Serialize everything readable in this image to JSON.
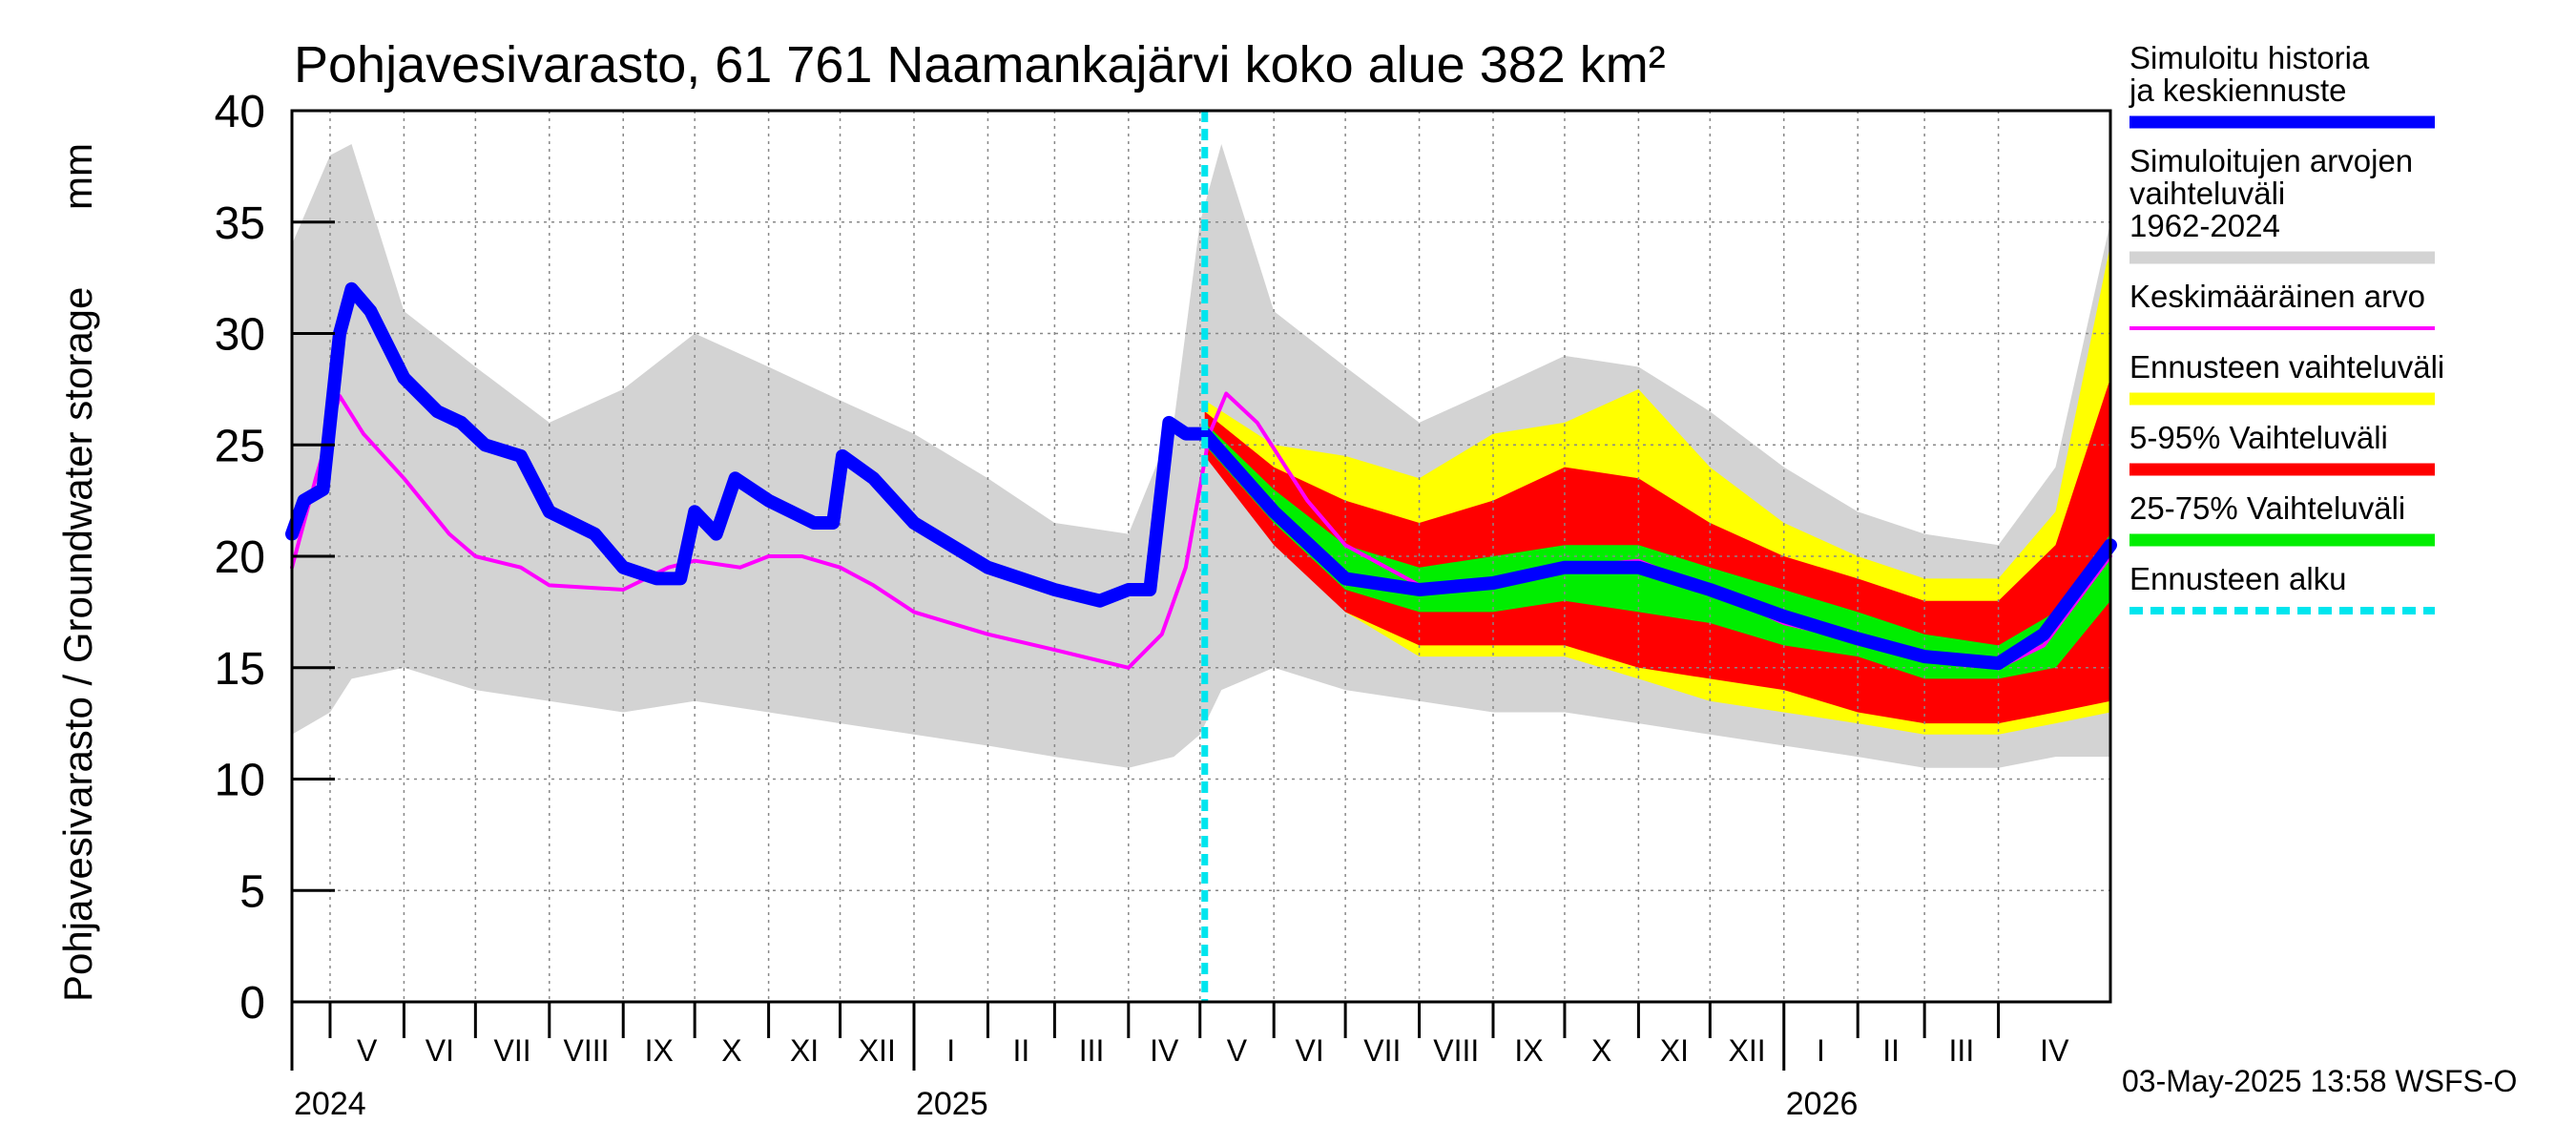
{
  "chart_data": {
    "type": "area",
    "title": "Pohjavesivarasto, 61 761 Naamankajärvi koko alue 382 km²",
    "ylabel": "Pohjavesivarasto / Groundwater storage",
    "yunit": "mm",
    "ylim": [
      0,
      40
    ],
    "yticks": [
      "0",
      "5",
      "10",
      "15",
      "20",
      "25",
      "30",
      "35",
      "40"
    ],
    "x_axis": {
      "start": "2024-04-15",
      "end": "2026-05-18",
      "months": [
        {
          "label": "V",
          "date": "2024-05-01"
        },
        {
          "label": "VI",
          "date": "2024-06-01"
        },
        {
          "label": "VII",
          "date": "2024-07-01"
        },
        {
          "label": "VIII",
          "date": "2024-08-01"
        },
        {
          "label": "IX",
          "date": "2024-09-01"
        },
        {
          "label": "X",
          "date": "2024-10-01"
        },
        {
          "label": "XI",
          "date": "2024-11-01"
        },
        {
          "label": "XII",
          "date": "2024-12-01"
        },
        {
          "label": "I",
          "date": "2025-01-01"
        },
        {
          "label": "II",
          "date": "2025-02-01"
        },
        {
          "label": "III",
          "date": "2025-03-01"
        },
        {
          "label": "IV",
          "date": "2025-04-01"
        },
        {
          "label": "V",
          "date": "2025-05-01"
        },
        {
          "label": "VI",
          "date": "2025-06-01"
        },
        {
          "label": "VII",
          "date": "2025-07-01"
        },
        {
          "label": "VIII",
          "date": "2025-08-01"
        },
        {
          "label": "IX",
          "date": "2025-09-01"
        },
        {
          "label": "X",
          "date": "2025-10-01"
        },
        {
          "label": "XI",
          "date": "2025-11-01"
        },
        {
          "label": "XII",
          "date": "2025-12-01"
        },
        {
          "label": "I",
          "date": "2026-01-01"
        },
        {
          "label": "II",
          "date": "2026-02-01"
        },
        {
          "label": "III",
          "date": "2026-03-01"
        },
        {
          "label": "IV",
          "date": "2026-04-01"
        }
      ],
      "years": [
        {
          "label": "2024",
          "date": "2024-04-15"
        },
        {
          "label": "2025",
          "date": "2025-01-01"
        },
        {
          "label": "2026",
          "date": "2026-01-01"
        }
      ]
    },
    "forecast_start": "2025-05-03",
    "series": [
      {
        "name": "Simuloitujen arvojen vaihteluväli 1962-2024",
        "kind": "band",
        "color": "#d3d3d3",
        "points": [
          {
            "d": "2024-04-15",
            "lo": 12,
            "hi": 34
          },
          {
            "d": "2024-05-01",
            "lo": 13,
            "hi": 38
          },
          {
            "d": "2024-05-10",
            "lo": 14.5,
            "hi": 38.5
          },
          {
            "d": "2024-06-01",
            "lo": 15,
            "hi": 31
          },
          {
            "d": "2024-07-01",
            "lo": 14,
            "hi": 28.5
          },
          {
            "d": "2024-08-01",
            "lo": 13.5,
            "hi": 26
          },
          {
            "d": "2024-09-01",
            "lo": 13,
            "hi": 27.5
          },
          {
            "d": "2024-10-01",
            "lo": 13.5,
            "hi": 30
          },
          {
            "d": "2024-11-01",
            "lo": 13,
            "hi": 28.5
          },
          {
            "d": "2024-12-01",
            "lo": 12.5,
            "hi": 27
          },
          {
            "d": "2025-01-01",
            "lo": 12,
            "hi": 25.5
          },
          {
            "d": "2025-02-01",
            "lo": 11.5,
            "hi": 23.5
          },
          {
            "d": "2025-03-01",
            "lo": 11,
            "hi": 21.5
          },
          {
            "d": "2025-04-01",
            "lo": 10.5,
            "hi": 21
          },
          {
            "d": "2025-04-20",
            "lo": 11,
            "hi": 26
          },
          {
            "d": "2025-05-01",
            "lo": 12,
            "hi": 35
          },
          {
            "d": "2025-05-10",
            "lo": 14,
            "hi": 38.5
          },
          {
            "d": "2025-06-01",
            "lo": 15,
            "hi": 31
          },
          {
            "d": "2025-07-01",
            "lo": 14,
            "hi": 28.5
          },
          {
            "d": "2025-08-01",
            "lo": 13.5,
            "hi": 26
          },
          {
            "d": "2025-09-01",
            "lo": 13,
            "hi": 27.5
          },
          {
            "d": "2025-10-01",
            "lo": 13,
            "hi": 29
          },
          {
            "d": "2025-11-01",
            "lo": 12.5,
            "hi": 28.5
          },
          {
            "d": "2025-12-01",
            "lo": 12,
            "hi": 26.5
          },
          {
            "d": "2026-01-01",
            "lo": 11.5,
            "hi": 24
          },
          {
            "d": "2026-02-01",
            "lo": 11,
            "hi": 22
          },
          {
            "d": "2026-03-01",
            "lo": 10.5,
            "hi": 21
          },
          {
            "d": "2026-04-01",
            "lo": 10.5,
            "hi": 20.5
          },
          {
            "d": "2026-04-25",
            "lo": 11,
            "hi": 24
          },
          {
            "d": "2026-05-18",
            "lo": 11,
            "hi": 35
          }
        ]
      },
      {
        "name": "Ennusteen vaihteluväli",
        "kind": "band",
        "color": "#ffff00",
        "points": [
          {
            "d": "2025-05-03",
            "lo": 25,
            "hi": 27
          },
          {
            "d": "2025-06-01",
            "lo": 21,
            "hi": 25
          },
          {
            "d": "2025-07-01",
            "lo": 17.5,
            "hi": 24.5
          },
          {
            "d": "2025-08-01",
            "lo": 15.5,
            "hi": 23.5
          },
          {
            "d": "2025-09-01",
            "lo": 15.5,
            "hi": 25.5
          },
          {
            "d": "2025-10-01",
            "lo": 15.5,
            "hi": 26
          },
          {
            "d": "2025-11-01",
            "lo": 14.5,
            "hi": 27.5
          },
          {
            "d": "2025-12-01",
            "lo": 13.5,
            "hi": 24
          },
          {
            "d": "2026-01-01",
            "lo": 13,
            "hi": 21.5
          },
          {
            "d": "2026-02-01",
            "lo": 12.5,
            "hi": 20
          },
          {
            "d": "2026-03-01",
            "lo": 12,
            "hi": 19
          },
          {
            "d": "2026-04-01",
            "lo": 12,
            "hi": 19
          },
          {
            "d": "2026-04-25",
            "lo": 12.5,
            "hi": 22
          },
          {
            "d": "2026-05-18",
            "lo": 13,
            "hi": 34
          }
        ]
      },
      {
        "name": "5-95% Vaihteluväli",
        "kind": "band",
        "color": "#ff0000",
        "points": [
          {
            "d": "2025-05-03",
            "lo": 24.5,
            "hi": 26.5
          },
          {
            "d": "2025-06-01",
            "lo": 20.5,
            "hi": 24
          },
          {
            "d": "2025-07-01",
            "lo": 17.5,
            "hi": 22.5
          },
          {
            "d": "2025-08-01",
            "lo": 16,
            "hi": 21.5
          },
          {
            "d": "2025-09-01",
            "lo": 16,
            "hi": 22.5
          },
          {
            "d": "2025-10-01",
            "lo": 16,
            "hi": 24
          },
          {
            "d": "2025-11-01",
            "lo": 15,
            "hi": 23.5
          },
          {
            "d": "2025-12-01",
            "lo": 14.5,
            "hi": 21.5
          },
          {
            "d": "2026-01-01",
            "lo": 14,
            "hi": 20
          },
          {
            "d": "2026-02-01",
            "lo": 13,
            "hi": 19
          },
          {
            "d": "2026-03-01",
            "lo": 12.5,
            "hi": 18
          },
          {
            "d": "2026-04-01",
            "lo": 12.5,
            "hi": 18
          },
          {
            "d": "2026-04-25",
            "lo": 13,
            "hi": 20.5
          },
          {
            "d": "2026-05-18",
            "lo": 13.5,
            "hi": 28
          }
        ]
      },
      {
        "name": "25-75% Vaihteluväli",
        "kind": "band",
        "color": "#00ee00",
        "points": [
          {
            "d": "2025-05-03",
            "lo": 25,
            "hi": 26
          },
          {
            "d": "2025-06-01",
            "lo": 21.5,
            "hi": 23
          },
          {
            "d": "2025-07-01",
            "lo": 18.5,
            "hi": 20.5
          },
          {
            "d": "2025-08-01",
            "lo": 17.5,
            "hi": 19.5
          },
          {
            "d": "2025-09-01",
            "lo": 17.5,
            "hi": 20
          },
          {
            "d": "2025-10-01",
            "lo": 18,
            "hi": 20.5
          },
          {
            "d": "2025-11-01",
            "lo": 17.5,
            "hi": 20.5
          },
          {
            "d": "2025-12-01",
            "lo": 17,
            "hi": 19.5
          },
          {
            "d": "2026-01-01",
            "lo": 16,
            "hi": 18.5
          },
          {
            "d": "2026-02-01",
            "lo": 15.5,
            "hi": 17.5
          },
          {
            "d": "2026-03-01",
            "lo": 14.5,
            "hi": 16.5
          },
          {
            "d": "2026-04-01",
            "lo": 14.5,
            "hi": 16
          },
          {
            "d": "2026-04-25",
            "lo": 15,
            "hi": 17.5
          },
          {
            "d": "2026-05-18",
            "lo": 18,
            "hi": 21
          }
        ]
      },
      {
        "name": "Keskimääräinen arvo",
        "kind": "line",
        "color": "#ff00ff",
        "width": 4,
        "points": [
          {
            "d": "2024-04-15",
            "v": 19.5
          },
          {
            "d": "2024-04-25",
            "v": 23.5
          },
          {
            "d": "2024-05-05",
            "v": 27.2
          },
          {
            "d": "2024-05-15",
            "v": 25.5
          },
          {
            "d": "2024-06-01",
            "v": 23.5
          },
          {
            "d": "2024-06-20",
            "v": 21
          },
          {
            "d": "2024-07-01",
            "v": 20
          },
          {
            "d": "2024-07-20",
            "v": 19.5
          },
          {
            "d": "2024-08-01",
            "v": 18.7
          },
          {
            "d": "2024-09-01",
            "v": 18.5
          },
          {
            "d": "2024-09-20",
            "v": 19.5
          },
          {
            "d": "2024-10-01",
            "v": 19.8
          },
          {
            "d": "2024-10-20",
            "v": 19.5
          },
          {
            "d": "2024-11-01",
            "v": 20
          },
          {
            "d": "2024-11-15",
            "v": 20
          },
          {
            "d": "2024-12-01",
            "v": 19.5
          },
          {
            "d": "2024-12-15",
            "v": 18.7
          },
          {
            "d": "2025-01-01",
            "v": 17.5
          },
          {
            "d": "2025-02-01",
            "v": 16.5
          },
          {
            "d": "2025-03-01",
            "v": 15.8
          },
          {
            "d": "2025-04-01",
            "v": 15
          },
          {
            "d": "2025-04-15",
            "v": 16.5
          },
          {
            "d": "2025-04-25",
            "v": 19.5
          },
          {
            "d": "2025-05-05",
            "v": 25.5
          },
          {
            "d": "2025-05-12",
            "v": 27.3
          },
          {
            "d": "2025-05-25",
            "v": 26
          },
          {
            "d": "2025-06-15",
            "v": 22.5
          },
          {
            "d": "2025-07-01",
            "v": 20.5
          },
          {
            "d": "2025-08-01",
            "v": 18.7
          },
          {
            "d": "2025-09-01",
            "v": 19
          },
          {
            "d": "2025-10-01",
            "v": 19.5
          },
          {
            "d": "2025-11-01",
            "v": 19.8
          },
          {
            "d": "2025-12-01",
            "v": 18.5
          },
          {
            "d": "2026-01-01",
            "v": 17
          },
          {
            "d": "2026-02-01",
            "v": 16.2
          },
          {
            "d": "2026-03-01",
            "v": 15.5
          },
          {
            "d": "2026-04-01",
            "v": 15
          },
          {
            "d": "2026-04-20",
            "v": 16
          },
          {
            "d": "2026-05-18",
            "v": 20
          }
        ]
      },
      {
        "name": "Simuloitu historia ja keskiennuste",
        "kind": "line",
        "color": "#0000ff",
        "width": 14,
        "points": [
          {
            "d": "2024-04-15",
            "v": 21
          },
          {
            "d": "2024-04-20",
            "v": 22.5
          },
          {
            "d": "2024-04-28",
            "v": 23
          },
          {
            "d": "2024-05-05",
            "v": 30
          },
          {
            "d": "2024-05-10",
            "v": 32
          },
          {
            "d": "2024-05-18",
            "v": 31
          },
          {
            "d": "2024-06-01",
            "v": 28
          },
          {
            "d": "2024-06-15",
            "v": 26.5
          },
          {
            "d": "2024-06-25",
            "v": 26
          },
          {
            "d": "2024-07-05",
            "v": 25
          },
          {
            "d": "2024-07-20",
            "v": 24.5
          },
          {
            "d": "2024-08-01",
            "v": 22
          },
          {
            "d": "2024-08-20",
            "v": 21
          },
          {
            "d": "2024-09-01",
            "v": 19.5
          },
          {
            "d": "2024-09-15",
            "v": 19
          },
          {
            "d": "2024-09-25",
            "v": 19
          },
          {
            "d": "2024-10-01",
            "v": 22
          },
          {
            "d": "2024-10-10",
            "v": 21
          },
          {
            "d": "2024-10-18",
            "v": 23.5
          },
          {
            "d": "2024-11-01",
            "v": 22.5
          },
          {
            "d": "2024-11-20",
            "v": 21.5
          },
          {
            "d": "2024-11-28",
            "v": 21.5
          },
          {
            "d": "2024-12-02",
            "v": 24.5
          },
          {
            "d": "2024-12-15",
            "v": 23.5
          },
          {
            "d": "2025-01-01",
            "v": 21.5
          },
          {
            "d": "2025-02-01",
            "v": 19.5
          },
          {
            "d": "2025-03-01",
            "v": 18.5
          },
          {
            "d": "2025-03-20",
            "v": 18
          },
          {
            "d": "2025-04-01",
            "v": 18.5
          },
          {
            "d": "2025-04-10",
            "v": 18.5
          },
          {
            "d": "2025-04-18",
            "v": 26
          },
          {
            "d": "2025-04-25",
            "v": 25.5
          },
          {
            "d": "2025-05-03",
            "v": 25.5
          },
          {
            "d": "2025-06-01",
            "v": 22
          },
          {
            "d": "2025-07-01",
            "v": 19
          },
          {
            "d": "2025-08-01",
            "v": 18.5
          },
          {
            "d": "2025-09-01",
            "v": 18.8
          },
          {
            "d": "2025-10-01",
            "v": 19.5
          },
          {
            "d": "2025-11-01",
            "v": 19.5
          },
          {
            "d": "2025-12-01",
            "v": 18.5
          },
          {
            "d": "2026-01-01",
            "v": 17.3
          },
          {
            "d": "2026-02-01",
            "v": 16.3
          },
          {
            "d": "2026-03-01",
            "v": 15.5
          },
          {
            "d": "2026-04-01",
            "v": 15.2
          },
          {
            "d": "2026-04-20",
            "v": 16.5
          },
          {
            "d": "2026-05-18",
            "v": 20.5
          }
        ]
      }
    ],
    "legend": [
      {
        "label": "Simuloitu historia ja keskiennuste",
        "color": "#0000ff",
        "style": "thick"
      },
      {
        "label": "Simuloitujen arvojen vaihteluväli 1962-2024",
        "color": "#d3d3d3",
        "style": "thick"
      },
      {
        "label": "Keskimääräinen arvo",
        "color": "#ff00ff",
        "style": "thin"
      },
      {
        "label": "Ennusteen vaihteluväli",
        "color": "#ffff00",
        "style": "thick"
      },
      {
        "label": "5-95% Vaihteluväli",
        "color": "#ff0000",
        "style": "thick"
      },
      {
        "label": "25-75% Vaihteluväli",
        "color": "#00ee00",
        "style": "thick"
      },
      {
        "label": "Ennusteen alku",
        "color": "#00e5ee",
        "style": "dashed"
      }
    ],
    "forecast_line_color": "#00e5ee",
    "grid": true,
    "legend_position": "right"
  },
  "footer": {
    "timestamp": "03-May-2025 13:58 WSFS-O"
  }
}
